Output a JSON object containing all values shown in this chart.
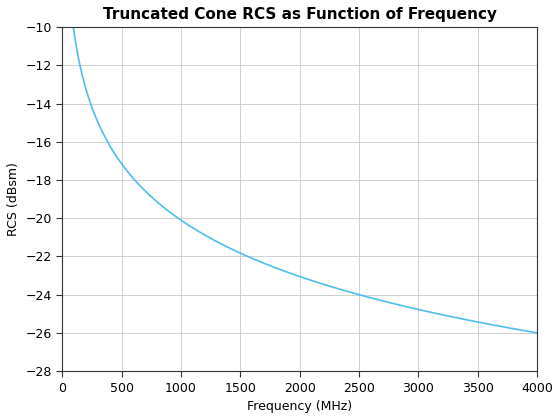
{
  "title": "Truncated Cone RCS as Function of Frequency",
  "xlabel": "Frequency (MHz)",
  "ylabel": "RCS (dBsm)",
  "xlim": [
    0,
    4000
  ],
  "ylim": [
    -28,
    -10
  ],
  "xticks": [
    0,
    500,
    1000,
    1500,
    2000,
    2500,
    3000,
    3500,
    4000
  ],
  "yticks": [
    -28,
    -26,
    -24,
    -22,
    -20,
    -18,
    -16,
    -14,
    -12,
    -10
  ],
  "line_color": "#4DBEEE",
  "line_width": 1.2,
  "freq_start": 10,
  "freq_end": 4000,
  "num_points": 1000,
  "background_color": "#ffffff",
  "grid_color": "#c8c8c8",
  "title_fontsize": 11,
  "label_fontsize": 9,
  "tick_fontsize": 9
}
